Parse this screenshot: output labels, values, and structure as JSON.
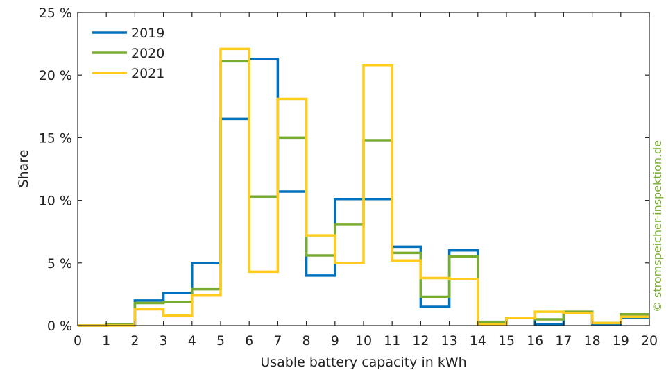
{
  "chart_data": {
    "type": "line",
    "style": "step",
    "xlabel": "Usable battery capacity in kWh",
    "ylabel": "Share",
    "xlim": [
      0,
      20
    ],
    "ylim": [
      0,
      25
    ],
    "x_ticks": [
      "0",
      "1",
      "2",
      "3",
      "4",
      "5",
      "6",
      "7",
      "8",
      "9",
      "10",
      "11",
      "12",
      "13",
      "14",
      "15",
      "16",
      "17",
      "18",
      "19",
      "20"
    ],
    "y_ticks": [
      "0 %",
      "5 %",
      "10 %",
      "15 %",
      "20 %",
      "25 %"
    ],
    "y_tick_values": [
      0,
      5,
      10,
      15,
      20,
      25
    ],
    "bin_edges": [
      0,
      1,
      2,
      3,
      4,
      5,
      6,
      7,
      8,
      9,
      10,
      11,
      12,
      13,
      14,
      15,
      16,
      17,
      18,
      19,
      20
    ],
    "series": [
      {
        "name": "2019",
        "color": "#0072BD",
        "values": [
          0,
          0.1,
          2.0,
          2.6,
          5.0,
          16.5,
          21.3,
          10.7,
          4.0,
          10.1,
          10.1,
          6.3,
          1.5,
          6.0,
          0.2,
          0.6,
          0.1,
          1.0,
          0.1,
          0.6
        ]
      },
      {
        "name": "2020",
        "color": "#77AC30",
        "values": [
          0,
          0.1,
          1.8,
          1.9,
          2.9,
          21.1,
          10.3,
          15.0,
          5.6,
          8.1,
          14.8,
          5.8,
          2.3,
          5.5,
          0.3,
          0.6,
          0.5,
          1.1,
          0.2,
          0.9
        ]
      },
      {
        "name": "2021",
        "color": "#FFCC1E",
        "values": [
          0,
          0.0,
          1.3,
          0.8,
          2.4,
          22.1,
          4.3,
          18.1,
          7.2,
          5.0,
          20.8,
          5.2,
          3.8,
          3.7,
          0.1,
          0.6,
          1.1,
          1.0,
          0.2,
          0.7
        ]
      }
    ],
    "legend_position": "top-left",
    "grid": false
  },
  "watermark": {
    "text": "© stromspeicher-inspektion.de",
    "color": "#77AC30"
  }
}
